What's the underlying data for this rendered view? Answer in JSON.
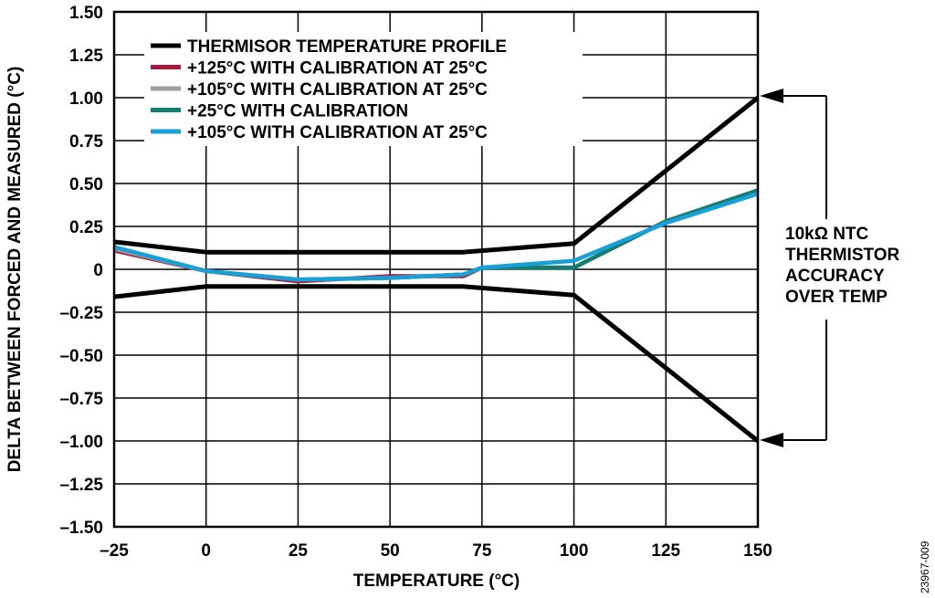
{
  "chart_data": {
    "type": "line",
    "xlabel": "TEMPERATURE (°C)",
    "ylabel": "DELTA BETWEEN FORCED AND MEASURED (°C)",
    "xlim": [
      -25,
      150
    ],
    "ylim": [
      -1.5,
      1.5
    ],
    "xticks": [
      -25,
      0,
      25,
      50,
      75,
      100,
      125,
      150
    ],
    "xtick_labels": [
      "–25",
      "0",
      "25",
      "50",
      "75",
      "100",
      "125",
      "150"
    ],
    "yticks": [
      1.5,
      1.25,
      1.0,
      0.75,
      0.5,
      0.25,
      0,
      -0.25,
      -0.5,
      -0.75,
      -1.0,
      -1.25,
      -1.5
    ],
    "ytick_labels": [
      "1.50",
      "1.25",
      "1.00",
      "0.75",
      "0.50",
      "0.25",
      "0",
      "–0.25",
      "–0.50",
      "–0.75",
      "–1.00",
      "–1.25",
      "–1.50"
    ],
    "grid": true,
    "legend_position": "top-left",
    "series": [
      {
        "name": "THERMISOR TEMPERATURE PROFILE",
        "color": "#000000",
        "x": [
          -25,
          0,
          70,
          100,
          150
        ],
        "y": [
          0.16,
          0.1,
          0.1,
          0.15,
          1.0
        ],
        "mirror": [
          -0.16,
          -0.1,
          -0.1,
          -0.15,
          -1.0
        ]
      },
      {
        "name": "+125°C WITH CALIBRATION AT 25°C",
        "color": "#a8193f",
        "x": [
          -25,
          0,
          25,
          50,
          70,
          75,
          100,
          125,
          150
        ],
        "y": [
          0.11,
          -0.01,
          -0.07,
          -0.04,
          -0.04,
          0.01,
          0.01,
          0.28,
          0.46
        ]
      },
      {
        "name": "+105°C WITH CALIBRATION AT 25°C",
        "color": "#9e9e9e",
        "x": [
          -25,
          0,
          25,
          50,
          70,
          75,
          100,
          125,
          150
        ],
        "y": [
          0.12,
          -0.01,
          -0.06,
          -0.05,
          -0.03,
          0.01,
          0.01,
          0.28,
          0.46
        ]
      },
      {
        "name": "+25°C WITH CALIBRATION",
        "color": "#137d6f",
        "x": [
          -25,
          0,
          25,
          50,
          70,
          75,
          100,
          125,
          150
        ],
        "y": [
          0.13,
          -0.01,
          -0.06,
          -0.05,
          -0.03,
          0.01,
          0.01,
          0.28,
          0.46
        ]
      },
      {
        "name": "+105°C WITH CALIBRATION AT 25°C",
        "color": "#1aa0d8",
        "x": [
          -25,
          0,
          25,
          50,
          70,
          75,
          100,
          125,
          150
        ],
        "y": [
          0.13,
          -0.01,
          -0.06,
          -0.05,
          -0.03,
          0.01,
          0.05,
          0.27,
          0.44
        ]
      }
    ],
    "annotation": [
      "10kΩ NTC",
      "THERMISTOR",
      "ACCURACY",
      "OVER TEMP"
    ],
    "figure_id": "23967-009"
  }
}
